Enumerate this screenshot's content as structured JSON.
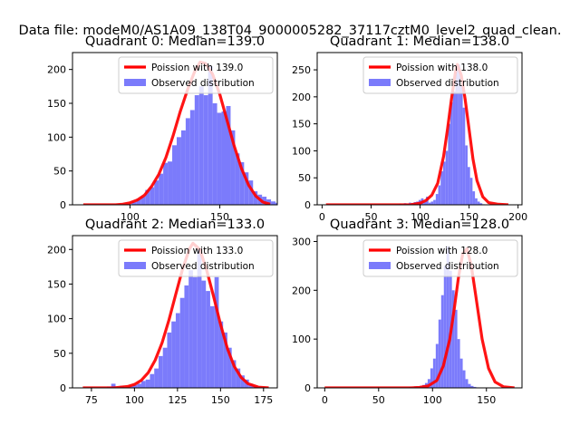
{
  "figure_title": "Data file: modeM0/AS1A09_138T04_9000005282_37117cztM0_level2_quad_clean.",
  "colors": {
    "hist": "#7b7bfb",
    "poisson": "#ff0000",
    "axis": "#000000",
    "legend_border": "#cccccc"
  },
  "chart_data": [
    {
      "type": "bar",
      "title": "Quadrant 0: Median=139.0",
      "xlim": [
        68,
        182
      ],
      "ylim": [
        0,
        225
      ],
      "xticks": [
        100,
        150
      ],
      "yticks": [
        0,
        50,
        100,
        150,
        200
      ],
      "legend": {
        "placement": "top-right",
        "entries": [
          "Poission with 139.0",
          "Observed distribution"
        ]
      },
      "hist": {
        "x_start": 96,
        "bin_width": 2.5,
        "values": [
          1,
          1,
          4,
          9,
          12,
          22,
          26,
          36,
          46,
          62,
          64,
          88,
          100,
          110,
          128,
          140,
          162,
          175,
          162,
          205,
          150,
          136,
          138,
          146,
          110,
          76,
          63,
          48,
          36,
          20,
          15,
          12,
          8,
          5,
          3,
          2
        ]
      },
      "poisson": {
        "x": [
          74,
          80,
          86,
          92,
          96,
          100,
          104,
          108,
          112,
          116,
          120,
          124,
          128,
          132,
          136,
          139,
          142,
          146,
          150,
          154,
          158,
          162,
          166,
          170,
          174,
          178
        ],
        "y": [
          0,
          0,
          0,
          0,
          1,
          3,
          7,
          14,
          27,
          45,
          70,
          102,
          138,
          170,
          197,
          211,
          209,
          193,
          163,
          125,
          87,
          54,
          29,
          13,
          4,
          1
        ]
      }
    },
    {
      "type": "bar",
      "title": "Quadrant 1: Median=138.0",
      "xlim": [
        -5,
        204
      ],
      "ylim": [
        0,
        282
      ],
      "xticks": [
        0,
        50,
        100,
        150,
        200
      ],
      "yticks": [
        0,
        50,
        100,
        150,
        200,
        250
      ],
      "legend": {
        "placement": "top-right",
        "entries": [
          "Poission with 138.0",
          "Observed distribution"
        ]
      },
      "hist": {
        "x_start": 76,
        "bin_width": 2.5,
        "values": [
          1,
          2,
          1,
          3,
          2,
          4,
          3,
          5,
          6,
          9,
          12,
          6,
          15,
          4,
          6,
          9,
          20,
          36,
          62,
          80,
          100,
          150,
          190,
          210,
          255,
          260,
          220,
          180,
          110,
          70,
          50,
          25,
          12,
          6,
          3,
          1
        ]
      },
      "poisson": {
        "x": [
          4,
          40,
          80,
          90,
          100,
          106,
          112,
          118,
          124,
          128,
          132,
          136,
          138,
          142,
          146,
          150,
          154,
          158,
          164,
          170,
          180,
          190
        ],
        "y": [
          0,
          0,
          0,
          0,
          3,
          8,
          18,
          40,
          90,
          140,
          195,
          245,
          260,
          240,
          195,
          140,
          85,
          45,
          15,
          4,
          1,
          0
        ]
      }
    },
    {
      "type": "bar",
      "title": "Quadrant 2: Median=133.0",
      "xlim": [
        64,
        183
      ],
      "ylim": [
        0,
        220
      ],
      "xticks": [
        75,
        100,
        125,
        150,
        175
      ],
      "yticks": [
        0,
        50,
        100,
        150,
        200
      ],
      "legend": {
        "placement": "top-right",
        "entries": [
          "Poission with 133.0",
          "Observed distribution"
        ]
      },
      "hist": {
        "x_start": 84,
        "bin_width": 2.5,
        "values": [
          2,
          6,
          1,
          3,
          1,
          2,
          4,
          6,
          10,
          12,
          20,
          28,
          46,
          58,
          80,
          96,
          108,
          130,
          148,
          170,
          160,
          200,
          155,
          140,
          118,
          160,
          96,
          80,
          58,
          40,
          28,
          18,
          12,
          6,
          3,
          2,
          1
        ]
      },
      "poisson": {
        "x": [
          70,
          76,
          82,
          88,
          92,
          96,
          100,
          104,
          108,
          112,
          116,
          120,
          124,
          128,
          132,
          134,
          138,
          142,
          146,
          150,
          154,
          158,
          162,
          166,
          172,
          178
        ],
        "y": [
          0,
          0,
          0,
          0,
          1,
          2,
          5,
          11,
          22,
          40,
          65,
          98,
          135,
          172,
          201,
          209,
          200,
          170,
          132,
          92,
          57,
          31,
          15,
          6,
          1,
          0
        ]
      }
    },
    {
      "type": "bar",
      "title": "Quadrant 3: Median=128.0",
      "xlim": [
        -7,
        183
      ],
      "ylim": [
        0,
        312
      ],
      "xticks": [
        0,
        50,
        100,
        150
      ],
      "yticks": [
        0,
        100,
        200,
        300
      ],
      "legend": {
        "placement": "top-right",
        "entries": [
          "Poission with 128.0",
          "Observed distribution"
        ]
      },
      "hist": {
        "x_start": 78,
        "bin_width": 2.5,
        "values": [
          2,
          1,
          3,
          2,
          4,
          6,
          10,
          18,
          40,
          60,
          90,
          140,
          190,
          250,
          290,
          240,
          200,
          160,
          100,
          60,
          36,
          18,
          8,
          4,
          2,
          1
        ]
      },
      "poisson": {
        "x": [
          0,
          40,
          80,
          88,
          96,
          104,
          110,
          116,
          120,
          124,
          128,
          132,
          136,
          140,
          146,
          152,
          158,
          166,
          176
        ],
        "y": [
          0,
          0,
          0,
          1,
          4,
          15,
          45,
          100,
          160,
          225,
          275,
          285,
          250,
          190,
          100,
          40,
          12,
          2,
          0
        ]
      }
    }
  ]
}
